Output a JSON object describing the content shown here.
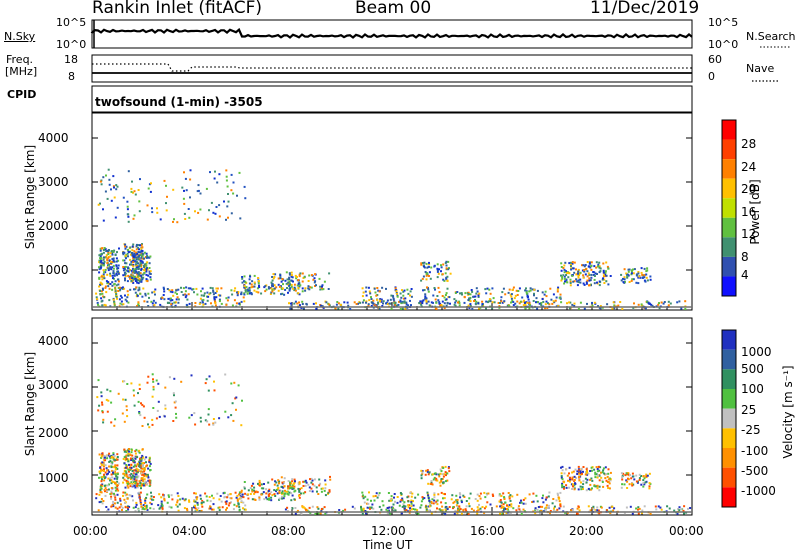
{
  "header": {
    "station": "Rankin Inlet (fitACF)",
    "beam": "Beam 00",
    "date": "11/Dec/2019"
  },
  "noise_panel": {
    "left_label": "N.Sky",
    "right_label": "N.Search",
    "left_ticks": [
      "10^5",
      "10^0"
    ],
    "right_ticks": [
      "10^5",
      "10^0"
    ]
  },
  "freq_panel": {
    "left_label_1": "Freq.",
    "left_label_2": "[MHz]",
    "right_label": "Nave",
    "left_ticks": [
      "18",
      "8"
    ],
    "right_ticks": [
      "60",
      "0"
    ]
  },
  "cpid": {
    "label": "CPID",
    "text": "twofsound (1-min) -3505"
  },
  "chart_data": [
    {
      "type": "heatmap",
      "title": "",
      "ylabel": "Slant Range [km]",
      "xlabel": "",
      "y_ticks": [
        "4000",
        "3000",
        "2000",
        "1000"
      ],
      "ylim": [
        180,
        4500
      ],
      "x_ticks": [
        "00:00",
        "04:00",
        "08:00",
        "12:00",
        "16:00",
        "20:00",
        "00:00"
      ],
      "colorbar_label": "Power [dB]",
      "colorbar_ticks": [
        "28",
        "24",
        "20",
        "16",
        "12",
        "8",
        "4"
      ],
      "colorbar_colors": [
        "#ff0000",
        "#ff4000",
        "#ff8000",
        "#ffc000",
        "#c0e000",
        "#60c040",
        "#409070",
        "#3050b0",
        "#1010ff"
      ]
    },
    {
      "type": "heatmap",
      "title": "",
      "ylabel": "Slant Range [km]",
      "xlabel": "Time UT",
      "y_ticks": [
        "4000",
        "3000",
        "2000",
        "1000"
      ],
      "ylim": [
        180,
        4500
      ],
      "x_ticks": [
        "00:00",
        "04:00",
        "08:00",
        "12:00",
        "16:00",
        "20:00",
        "00:00"
      ],
      "colorbar_label": "Velocity [m s⁻¹]",
      "colorbar_ticks": [
        "1000",
        "500",
        "100",
        "25",
        "-25",
        "-100",
        "-500",
        "-1000"
      ],
      "colorbar_colors": [
        "#2030c0",
        "#3060a0",
        "#309060",
        "#50c040",
        "#c0c0c0",
        "#ffc000",
        "#ff9000",
        "#ff5000",
        "#ff0000"
      ]
    }
  ]
}
